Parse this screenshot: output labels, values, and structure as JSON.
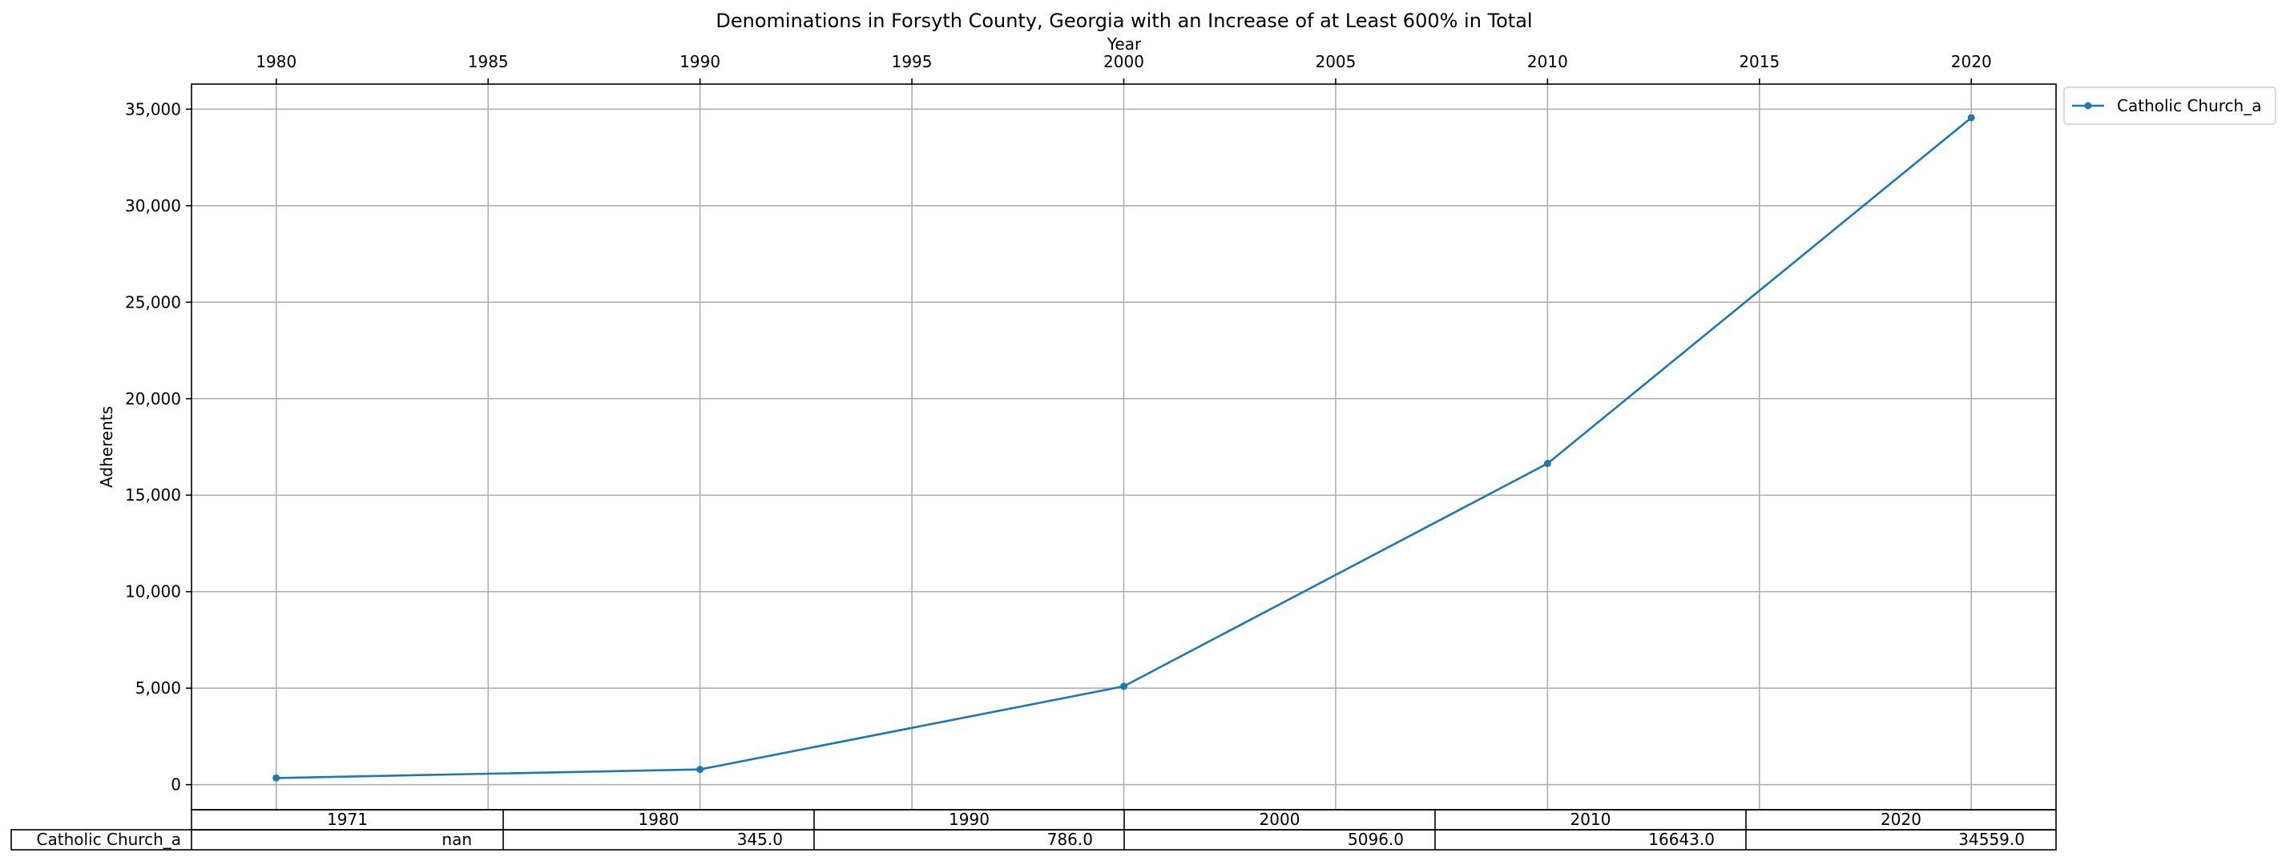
{
  "chart_data": {
    "type": "line",
    "title": "Denominations in Forsyth County, Georgia with an Increase of at Least 600% in Total",
    "xlabel": "Year",
    "ylabel": "Adherents",
    "xlim": [
      1978,
      2022
    ],
    "ylim": [
      -1300,
      36300
    ],
    "x_ticks": [
      1980,
      1985,
      1990,
      1995,
      2000,
      2005,
      2010,
      2015,
      2020
    ],
    "x_tick_labels": [
      "1980",
      "1985",
      "1990",
      "1995",
      "2000",
      "2005",
      "2010",
      "2015",
      "2020"
    ],
    "y_ticks": [
      0,
      5000,
      10000,
      15000,
      20000,
      25000,
      30000,
      35000
    ],
    "y_tick_labels": [
      "0",
      "5,000",
      "10,000",
      "15,000",
      "20,000",
      "25,000",
      "30,000",
      "35,000"
    ],
    "x_axis_position": "top",
    "grid": true,
    "legend_position": "outside-top-right",
    "series": [
      {
        "name": "Catholic Church_a",
        "color": "#1f77b4",
        "marker": "circle",
        "x": [
          1980,
          1990,
          2000,
          2010,
          2020
        ],
        "values": [
          345,
          786,
          5096,
          16643,
          34559
        ]
      }
    ],
    "table": {
      "columns": [
        "1971",
        "1980",
        "1990",
        "2000",
        "2010",
        "2020"
      ],
      "rows": [
        {
          "label": "Catholic Church_a",
          "cells": [
            "nan",
            "345.0",
            "786.0",
            "5096.0",
            "16643.0",
            "34559.0"
          ]
        }
      ]
    }
  }
}
